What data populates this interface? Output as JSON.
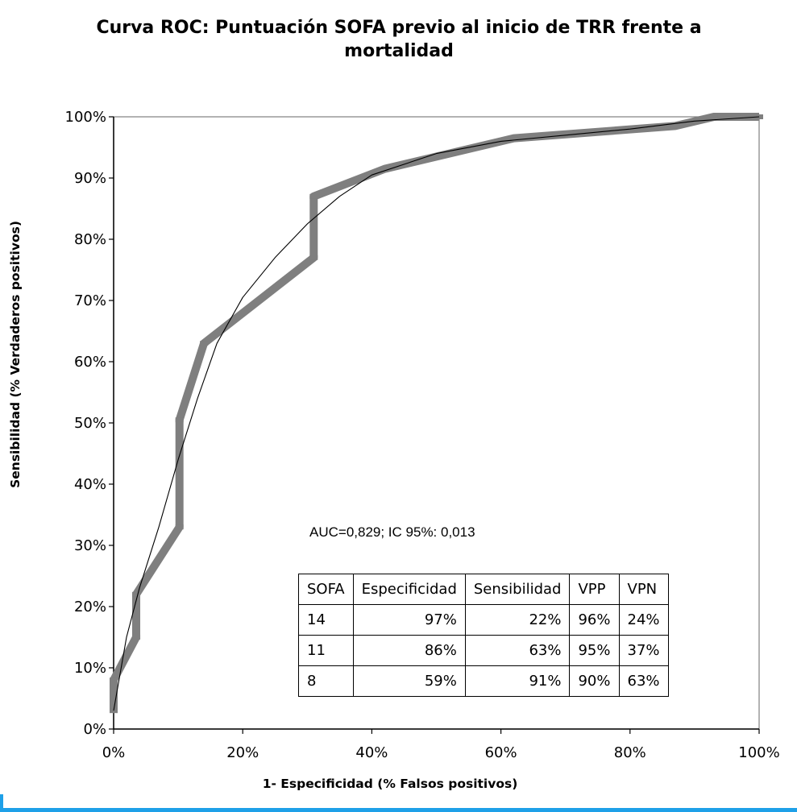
{
  "chart_data": {
    "type": "line",
    "title": "Curva ROC: Puntuación SOFA previo al inicio de TRR frente a mortalidad",
    "xlabel": "1- Especificidad  (% Falsos positivos)",
    "ylabel": "Sensibilidad  (% Verdaderos positivos)",
    "xlim": [
      0,
      100
    ],
    "ylim": [
      0,
      100
    ],
    "x_ticks": [
      "0%",
      "20%",
      "40%",
      "60%",
      "80%",
      "100%"
    ],
    "y_ticks": [
      "0%",
      "10%",
      "20%",
      "30%",
      "40%",
      "50%",
      "60%",
      "70%",
      "80%",
      "90%",
      "100%"
    ],
    "grid": false,
    "series": [
      {
        "style": "thick-gray",
        "color": "#7f7f7f",
        "points": [
          [
            0,
            3
          ],
          [
            0,
            8
          ],
          [
            3.5,
            15
          ],
          [
            3.5,
            22
          ],
          [
            10.2,
            33
          ],
          [
            10.2,
            50.5
          ],
          [
            14,
            63
          ],
          [
            31,
            77
          ],
          [
            31,
            87
          ],
          [
            42,
            91.5
          ],
          [
            62,
            96.5
          ],
          [
            87,
            98.5
          ],
          [
            93,
            100
          ],
          [
            96.5,
            100
          ],
          [
            100,
            100
          ]
        ]
      },
      {
        "style": "thin-fit",
        "color": "#000000",
        "points": [
          [
            0,
            3
          ],
          [
            2,
            15
          ],
          [
            4,
            23
          ],
          [
            7,
            33
          ],
          [
            10,
            44
          ],
          [
            13,
            54
          ],
          [
            16,
            63
          ],
          [
            20,
            70.5
          ],
          [
            25,
            77
          ],
          [
            30,
            82.5
          ],
          [
            35,
            87
          ],
          [
            40,
            90.5
          ],
          [
            50,
            94
          ],
          [
            60,
            96
          ],
          [
            70,
            97
          ],
          [
            80,
            98
          ],
          [
            90,
            99.3
          ],
          [
            100,
            100
          ]
        ]
      }
    ],
    "annotation": "AUC=0,829; IC 95%: 0,013",
    "table": {
      "headers": [
        "SOFA",
        "Especificidad",
        "Sensibilidad",
        "VPP",
        "VPN"
      ],
      "rows": [
        [
          "14",
          "97%",
          "22%",
          "96%",
          "24%"
        ],
        [
          "11",
          "86%",
          "63%",
          "95%",
          "37%"
        ],
        [
          "8",
          "59%",
          "91%",
          "90%",
          "63%"
        ]
      ]
    }
  },
  "colors": {
    "frame": "#808080",
    "roc_line": "#7f7f7f",
    "fit_line": "#000000",
    "accent": "#1ea0e8"
  }
}
